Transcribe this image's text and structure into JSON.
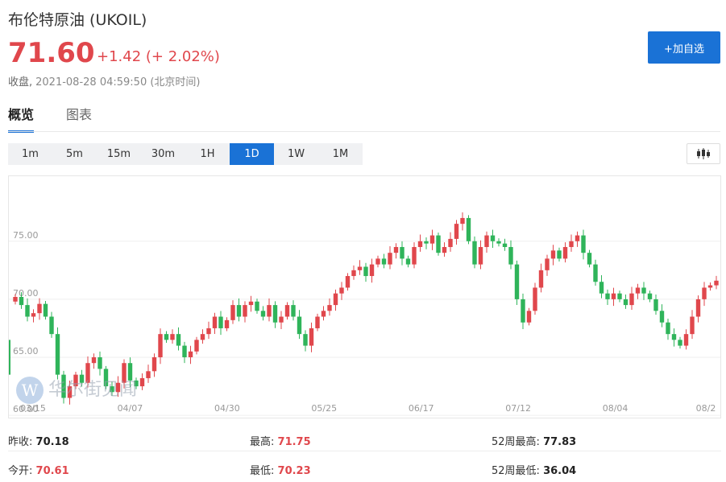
{
  "header": {
    "title": "布伦特原油  (UKOIL)",
    "price": "71.60",
    "change": "+1.42 (+ 2.02%)",
    "status": "收盘,",
    "timestamp": "2021-08-28 04:59:50 (北京时间)",
    "add_button": "+加自选"
  },
  "tabs": [
    {
      "label": "概览",
      "active": true
    },
    {
      "label": "图表",
      "active": false
    }
  ],
  "periods": [
    {
      "label": "1m",
      "active": false
    },
    {
      "label": "5m",
      "active": false
    },
    {
      "label": "15m",
      "active": false
    },
    {
      "label": "30m",
      "active": false
    },
    {
      "label": "1H",
      "active": false
    },
    {
      "label": "1D",
      "active": true
    },
    {
      "label": "1W",
      "active": false
    },
    {
      "label": "1M",
      "active": false
    }
  ],
  "chart_type_icon": "candlestick-icon",
  "watermark": {
    "logo": "W",
    "text": "华尔街见闻"
  },
  "colors": {
    "up": "#e0474c",
    "down": "#2fb45a",
    "accent": "#1a72d6"
  },
  "chart_data": {
    "type": "candlestick",
    "title": "",
    "ylim": [
      59.8,
      80.6
    ],
    "y_ticks": [
      "75.00",
      "70.00",
      "65.00",
      "60.00"
    ],
    "y_tick_values": [
      75,
      70,
      65,
      60
    ],
    "x_ticks": [
      "03/15",
      "04/07",
      "04/30",
      "05/25",
      "06/17",
      "07/12",
      "08/04",
      "08/2"
    ],
    "grid": true,
    "close_path": [
      70.2,
      69.5,
      68.5,
      68.8,
      69.6,
      68.5,
      67.0,
      63.5,
      61.5,
      62.5,
      63.5,
      62.8,
      64.5,
      65.0,
      64.0,
      62.5,
      62.0,
      62.8,
      64.5,
      63.0,
      62.5,
      63.2,
      63.8,
      65.0,
      67.0,
      66.5,
      67.0,
      66.0,
      65.0,
      65.5,
      66.5,
      67.0,
      67.5,
      68.5,
      67.5,
      68.2,
      69.5,
      68.5,
      69.5,
      69.8,
      69.0,
      68.5,
      69.5,
      68.0,
      68.5,
      69.5,
      68.5,
      67.0,
      66.0,
      67.5,
      68.5,
      69.0,
      69.5,
      70.5,
      71.0,
      72.0,
      72.5,
      72.8,
      72.0,
      73.0,
      73.5,
      73.0,
      74.0,
      74.5,
      73.5,
      73.0,
      74.5,
      75.0,
      74.8,
      75.5,
      74.0,
      74.5,
      75.2,
      76.5,
      77.0,
      75.0,
      73.0,
      74.5,
      75.5,
      75.0,
      74.8,
      74.5,
      73.0,
      70.0,
      68.0,
      69.0,
      71.0,
      72.5,
      73.5,
      74.2,
      73.5,
      74.5,
      75.0,
      75.5,
      74.0,
      73.0,
      71.5,
      70.5,
      70.0,
      70.5,
      70.0,
      69.5,
      70.5,
      71.0,
      70.5,
      70.0,
      69.0,
      68.0,
      67.0,
      66.5,
      66.0,
      67.0,
      68.5,
      70.0,
      71.0,
      71.2,
      71.6
    ],
    "extra_candles": [
      {
        "x_index": 0,
        "open": 66.5,
        "close": 63.5,
        "high": 67.0,
        "low": 63.0
      }
    ]
  },
  "stats": [
    {
      "label": "昨收:",
      "value": "70.18",
      "tone": "dark"
    },
    {
      "label": "最高:",
      "value": "71.75",
      "tone": "red"
    },
    {
      "label": "52周最高:",
      "value": "77.83",
      "tone": "dark"
    },
    {
      "label": "今开:",
      "value": "70.61",
      "tone": "red"
    },
    {
      "label": "最低:",
      "value": "70.23",
      "tone": "red"
    },
    {
      "label": "52周最低:",
      "value": "36.04",
      "tone": "dark"
    }
  ]
}
